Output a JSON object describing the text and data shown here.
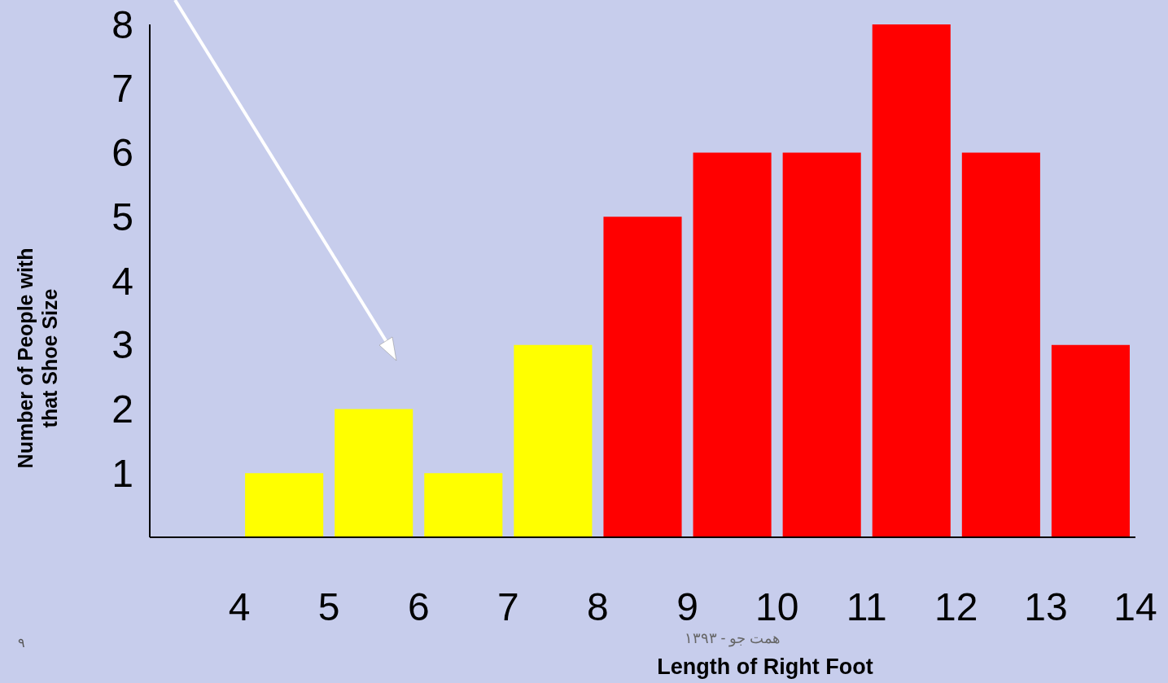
{
  "chart_data": {
    "type": "histogram",
    "xlabel": "Length of Right Foot",
    "ylabel": "Number of People with that Shoe Size",
    "bins": [
      4,
      5,
      6,
      7,
      8,
      9,
      10,
      11,
      12,
      13,
      14
    ],
    "values": [
      1,
      2,
      1,
      3,
      5,
      6,
      6,
      8,
      6,
      3
    ],
    "colors": [
      "#ffff00",
      "#ffff00",
      "#ffff00",
      "#ffff00",
      "#ff0000",
      "#ff0000",
      "#ff0000",
      "#ff0000",
      "#ff0000",
      "#ff0000"
    ],
    "xlim": [
      3,
      14
    ],
    "xticks": [
      4,
      5,
      6,
      7,
      8,
      9,
      10,
      11,
      12,
      13,
      14
    ],
    "ylim": [
      0,
      8
    ],
    "yticks": [
      1,
      2,
      3,
      4,
      5,
      6,
      7,
      8
    ],
    "grid": false,
    "annotations": [
      "۹",
      "همت جو - ۱۳۹۳"
    ]
  }
}
